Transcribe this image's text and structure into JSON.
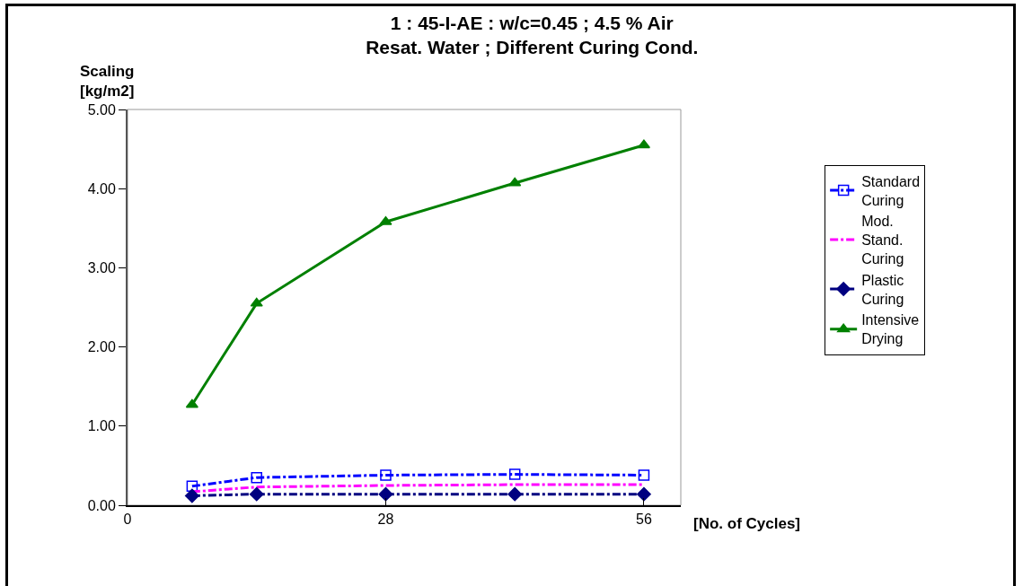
{
  "chart_data": {
    "type": "line",
    "title": "1 : 45-I-AE : w/c=0.45 ; 4.5 % Air\nResat. Water ; Different Curing Cond.",
    "xlabel": "[No. of Cycles]",
    "ylabel": "Scaling\n[kg/m2]",
    "x": [
      7,
      14,
      28,
      42,
      56
    ],
    "series": [
      {
        "name": "Standard Curing",
        "color": "#0000ff",
        "marker": "square",
        "line_style": "dashed",
        "values": [
          0.24,
          0.35,
          0.38,
          0.39,
          0.38
        ]
      },
      {
        "name": "Mod. Stand. Curing",
        "color": "#ff00ff",
        "marker": "none",
        "line_style": "dashed",
        "values": [
          0.17,
          0.23,
          0.25,
          0.26,
          0.26
        ]
      },
      {
        "name": "Plastic Curing",
        "color": "#000080",
        "marker": "diamond",
        "line_style": "dashed",
        "values": [
          0.12,
          0.14,
          0.14,
          0.14,
          0.14
        ]
      },
      {
        "name": "Intensive Drying",
        "color": "#008000",
        "marker": "triangle",
        "line_style": "solid",
        "values": [
          1.27,
          2.55,
          3.58,
          4.07,
          4.55
        ]
      }
    ],
    "xlim": [
      0,
      60
    ],
    "xticks": [
      0,
      28,
      56
    ],
    "ylim": [
      0,
      5
    ],
    "yticks": [
      {
        "value": 0,
        "label": "0.00"
      },
      {
        "value": 1,
        "label": "1.00"
      },
      {
        "value": 2,
        "label": "2.00"
      },
      {
        "value": 3,
        "label": "3.00"
      },
      {
        "value": 4,
        "label": "4.00"
      },
      {
        "value": 5,
        "label": "5.00"
      }
    ],
    "grid": false,
    "legend": "right"
  }
}
